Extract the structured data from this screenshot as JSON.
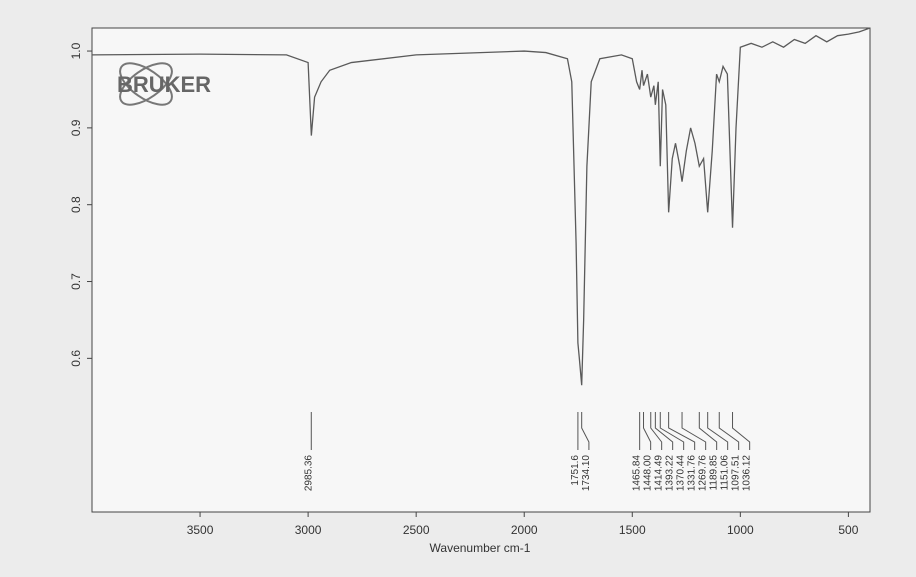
{
  "chart_data": {
    "type": "line",
    "logo_text": "BRUKER",
    "x_label": "Wavenumber cm-1",
    "color": "#5a5a5a",
    "xlim": [
      4000,
      400
    ],
    "ylim": [
      0.4,
      1.03
    ],
    "xticks": [
      3500,
      3000,
      2500,
      2000,
      1500,
      1000,
      500
    ],
    "yticks": [
      {
        "value": 1,
        "label": "1.0"
      },
      0.9,
      0.8,
      0.7,
      0.6
    ],
    "x": [
      4000,
      3500,
      3100,
      3000,
      2985,
      2970,
      2940,
      2900,
      2800,
      2500,
      2000,
      1900,
      1800,
      1780,
      1760,
      1751.6,
      1745,
      1734.1,
      1725,
      1710,
      1690,
      1650,
      1550,
      1500,
      1480,
      1465.84,
      1455,
      1448,
      1430,
      1414.49,
      1400,
      1393.22,
      1380,
      1370.44,
      1360,
      1345,
      1331.76,
      1315,
      1300,
      1280,
      1269.76,
      1250,
      1230,
      1210,
      1189.85,
      1170,
      1151.06,
      1130,
      1110,
      1097.51,
      1080,
      1060,
      1036.12,
      1020,
      1000,
      950,
      900,
      850,
      800,
      750,
      700,
      650,
      600,
      550,
      500,
      450,
      400
    ],
    "values": [
      0.995,
      0.996,
      0.995,
      0.985,
      0.89,
      0.94,
      0.96,
      0.975,
      0.985,
      0.995,
      1.0,
      0.998,
      0.99,
      0.96,
      0.75,
      0.62,
      0.6,
      0.565,
      0.65,
      0.85,
      0.96,
      0.99,
      0.995,
      0.99,
      0.96,
      0.95,
      0.975,
      0.955,
      0.97,
      0.94,
      0.955,
      0.93,
      0.96,
      0.85,
      0.95,
      0.93,
      0.79,
      0.86,
      0.88,
      0.85,
      0.83,
      0.87,
      0.9,
      0.88,
      0.85,
      0.86,
      0.79,
      0.87,
      0.97,
      0.96,
      0.98,
      0.97,
      0.77,
      0.9,
      1.005,
      1.01,
      1.005,
      1.012,
      1.005,
      1.015,
      1.01,
      1.02,
      1.012,
      1.02,
      1.022,
      1.025,
      1.03
    ],
    "peaks": [
      2985.36,
      1751.6,
      {
        "value": 1734.1,
        "label": "1734.10"
      },
      1465.84,
      {
        "value": 1448,
        "label": "1448.00"
      },
      1414.49,
      1393.22,
      1370.44,
      1331.76,
      1269.76,
      1189.85,
      1151.06,
      1097.51,
      1036.12
    ]
  }
}
